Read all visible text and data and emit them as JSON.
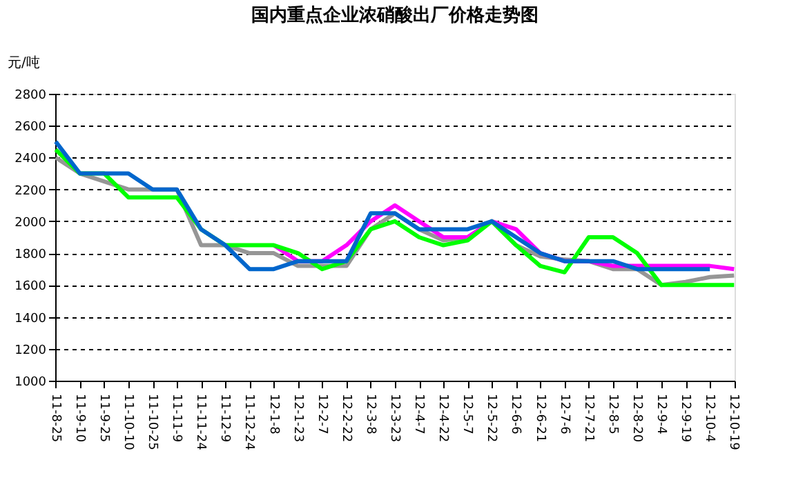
{
  "chart_data": {
    "type": "line",
    "title": "国内重点企业浓硝酸出厂价格走势图",
    "ylabel": "元/吨",
    "categories": [
      "11-8-25",
      "11-9-10",
      "11-9-25",
      "11-10-10",
      "11-10-25",
      "11-11-9",
      "11-11-24",
      "11-12-9",
      "11-12-24",
      "12-1-8",
      "12-1-23",
      "12-2-7",
      "12-2-22",
      "12-3-8",
      "12-3-23",
      "12-4-7",
      "12-4-22",
      "12-5-7",
      "12-5-22",
      "12-6-6",
      "12-6-21",
      "12-7-6",
      "12-7-21",
      "12-8-5",
      "12-8-20",
      "12-9-4",
      "12-9-19",
      "12-10-4",
      "12-10-19"
    ],
    "series": [
      {
        "color": "#969696",
        "values": [
          2400,
          2300,
          2250,
          2200,
          2200,
          2200,
          1850,
          1850,
          1800,
          1800,
          1720,
          1720,
          1720,
          1950,
          2050,
          1950,
          1880,
          1900,
          2000,
          1850,
          1780,
          1760,
          1750,
          1700,
          1700,
          1600,
          1620,
          1650,
          1660
        ]
      },
      {
        "color": "#ff00ff",
        "values": [
          null,
          null,
          null,
          null,
          null,
          null,
          null,
          null,
          null,
          1850,
          1750,
          1750,
          1850,
          2000,
          2100,
          2000,
          1900,
          1900,
          2000,
          1950,
          1800,
          1750,
          1750,
          1720,
          1720,
          1720,
          1720,
          1720,
          1700
        ]
      },
      {
        "color": "#00ff00",
        "values": [
          2450,
          2300,
          2300,
          2150,
          2150,
          2150,
          1950,
          1850,
          1850,
          1850,
          1800,
          1700,
          1750,
          1950,
          2000,
          1900,
          1850,
          1880,
          2000,
          1850,
          1720,
          1680,
          1900,
          1900,
          1800,
          1600,
          1600,
          1600,
          1600
        ]
      },
      {
        "color": "#0066cc",
        "values": [
          2500,
          2300,
          2300,
          2300,
          2200,
          2200,
          1950,
          1850,
          1700,
          1700,
          1750,
          1750,
          1750,
          2050,
          2050,
          1950,
          1950,
          1950,
          2000,
          1900,
          1800,
          1750,
          1750,
          1750,
          1700,
          1700,
          1700,
          1700,
          null
        ]
      }
    ],
    "ylim": [
      1000,
      2800
    ],
    "yticks": [
      1000,
      1200,
      1400,
      1600,
      1800,
      2000,
      2200,
      2400,
      2600,
      2800
    ],
    "grid": "y",
    "line_style": "solid",
    "legend": false
  }
}
